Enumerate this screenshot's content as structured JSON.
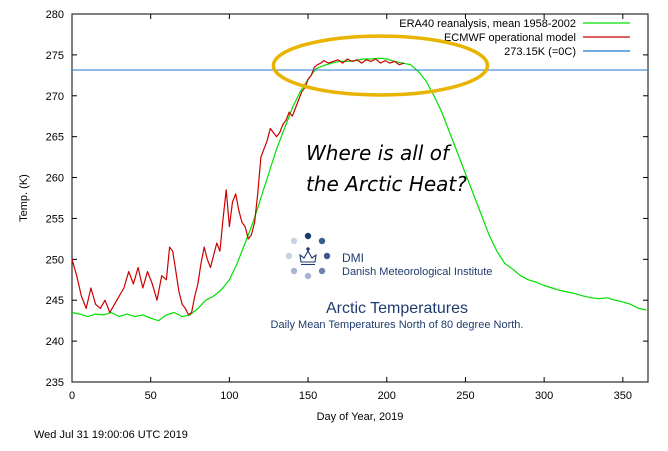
{
  "chart_data": {
    "type": "line",
    "title": "",
    "xlabel": "Day of Year, 2019",
    "ylabel": "Temp. (K)",
    "xlim": [
      0,
      366
    ],
    "ylim": [
      235,
      280
    ],
    "xticks": [
      0,
      50,
      100,
      150,
      200,
      250,
      300,
      350
    ],
    "yticks": [
      235,
      240,
      245,
      250,
      255,
      260,
      265,
      270,
      275,
      280
    ],
    "grid": false,
    "legend_position": "top-right",
    "series": [
      {
        "name": "ERA40 reanalysis, mean 1958-2002",
        "color": "#00e000",
        "x": [
          0,
          5,
          10,
          15,
          20,
          25,
          30,
          35,
          40,
          45,
          50,
          55,
          60,
          65,
          70,
          75,
          80,
          85,
          90,
          95,
          100,
          105,
          110,
          115,
          120,
          125,
          130,
          135,
          140,
          145,
          150,
          155,
          160,
          165,
          170,
          175,
          180,
          185,
          190,
          195,
          200,
          205,
          210,
          215,
          220,
          225,
          230,
          235,
          240,
          245,
          250,
          255,
          260,
          265,
          270,
          275,
          280,
          285,
          290,
          295,
          300,
          305,
          310,
          315,
          320,
          325,
          330,
          335,
          340,
          345,
          350,
          355,
          360,
          365
        ],
        "y": [
          243.5,
          243.3,
          243.0,
          243.3,
          243.2,
          243.5,
          243.0,
          243.3,
          243.0,
          243.2,
          242.8,
          242.5,
          243.2,
          243.5,
          243.0,
          243.2,
          244.0,
          245.0,
          245.5,
          246.3,
          247.5,
          249.5,
          252.0,
          254.5,
          257.5,
          260.5,
          263.5,
          266.0,
          268.5,
          270.5,
          272.0,
          273.3,
          273.7,
          274.0,
          274.2,
          274.2,
          274.3,
          274.5,
          274.5,
          274.6,
          274.5,
          274.2,
          274.0,
          273.8,
          273.0,
          271.8,
          270.0,
          268.0,
          265.5,
          263.0,
          260.5,
          258.0,
          255.5,
          253.0,
          251.0,
          249.5,
          248.8,
          248.0,
          247.5,
          247.2,
          246.8,
          246.5,
          246.2,
          246.0,
          245.8,
          245.5,
          245.3,
          245.2,
          245.3,
          245.0,
          244.8,
          244.5,
          244.0,
          243.8
        ]
      },
      {
        "name": "ECMWF operational model",
        "color": "#cc0000",
        "x": [
          0,
          3,
          6,
          9,
          12,
          15,
          18,
          21,
          24,
          27,
          30,
          33,
          36,
          39,
          42,
          45,
          48,
          51,
          54,
          57,
          60,
          62,
          64,
          66,
          68,
          70,
          72,
          74,
          76,
          78,
          80,
          82,
          84,
          86,
          88,
          90,
          92,
          94,
          96,
          98,
          100,
          102,
          104,
          106,
          108,
          110,
          112,
          114,
          116,
          118,
          120,
          122,
          124,
          126,
          128,
          130,
          132,
          134,
          136,
          138,
          140,
          142,
          144,
          146,
          148,
          150,
          152,
          154,
          156,
          158,
          160,
          163,
          166,
          169,
          172,
          175,
          178,
          181,
          184,
          187,
          190,
          193,
          196,
          199,
          202,
          205,
          208,
          211
        ],
        "y": [
          250.0,
          248.0,
          245.5,
          244.0,
          246.5,
          244.5,
          244.0,
          245.0,
          243.5,
          244.5,
          245.5,
          246.5,
          248.5,
          247.0,
          249.0,
          246.5,
          248.5,
          247.0,
          245.0,
          248.0,
          247.5,
          251.5,
          251.0,
          248.5,
          246.0,
          244.5,
          244.0,
          243.2,
          243.5,
          245.5,
          247.0,
          249.5,
          251.5,
          250.0,
          249.0,
          250.5,
          252.0,
          251.0,
          255.0,
          258.5,
          254.0,
          257.0,
          258.0,
          256.0,
          254.5,
          254.0,
          252.5,
          253.0,
          254.5,
          258.0,
          262.5,
          263.5,
          264.5,
          266.0,
          265.5,
          265.0,
          265.5,
          266.5,
          267.0,
          268.0,
          267.5,
          268.5,
          269.5,
          270.5,
          271.0,
          272.0,
          272.5,
          273.5,
          273.8,
          274.0,
          274.3,
          274.0,
          274.2,
          274.4,
          274.0,
          274.5,
          274.2,
          274.4,
          274.0,
          274.4,
          274.2,
          274.5,
          274.0,
          274.3,
          274.0,
          274.2,
          273.8,
          274.0
        ]
      },
      {
        "name": "273.15K (=0C)",
        "color": "#1f77cc",
        "x": [
          0,
          366
        ],
        "y": [
          273.15,
          273.15
        ]
      }
    ],
    "annotations": {
      "callout_line1": "Where is all of",
      "callout_line2": "the Arctic Heat?",
      "ellipse_color": "#e8b400",
      "ellipse_center_x": 196,
      "ellipse_center_y": 273.7,
      "ellipse_radius_x": 68,
      "ellipse_radius_y": 3.6
    }
  },
  "logo": {
    "name": "DMI",
    "full": "Danish Meteorological Institute"
  },
  "overlay": {
    "title": "Arctic Temperatures",
    "subtitle": "Daily Mean Temperatures North of 80 degree North."
  },
  "timestamp": "Wed Jul 31 19:00:06 UTC 2019",
  "colors": {
    "dmi_blue": "#1f3c6e",
    "logo_dots": [
      "#1f3c6e",
      "#3d5a8c",
      "#6d83ab",
      "#a7b5cf",
      "#c9d2e3",
      "#8fa0c0"
    ]
  }
}
